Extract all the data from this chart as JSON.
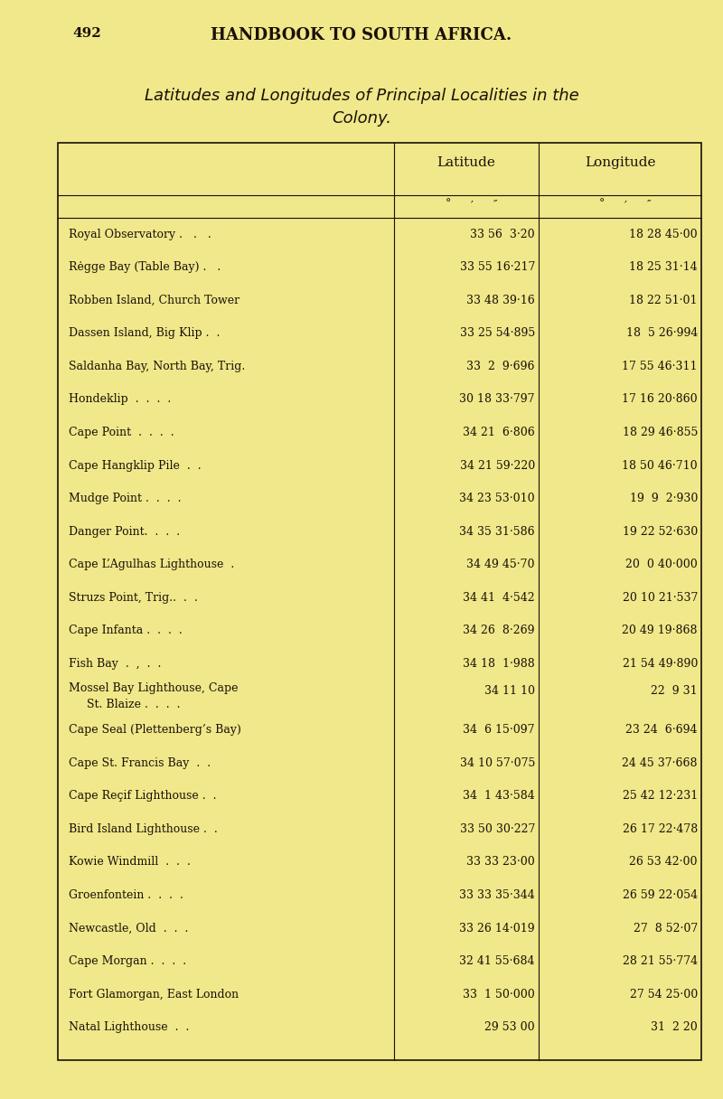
{
  "page_number": "492",
  "header": "HANDBOOK TO SOUTH AFRICA.",
  "title_line1": "Latitudes and Longitudes of Principal Localities in the",
  "title_line2": "Colony.",
  "col_header_name": "",
  "col_header_lat": "Latitude",
  "col_header_lon": "Longitude",
  "col_subheader": "°   ′   ″",
  "background_color": "#f0e88a",
  "table_bg": "#f5efb0",
  "text_color": "#1a1008",
  "rows": [
    [
      "Royal Observatory .   .   .",
      "33 56  3·20",
      "18 28 45·00"
    ],
    [
      "Rėgge Bay (Table Bay) .   .",
      "33 55 16·217",
      "18 25 31·14"
    ],
    [
      "Robben Island, Church Tower",
      "33 48 39·16",
      "18 22 51·01"
    ],
    [
      "Dassen Island, Big Klip .  .",
      "33 25 54·895",
      "18  5 26·994"
    ],
    [
      "Saldanha Bay, North Bay, Trig.",
      "33  2  9·696",
      "17 55 46·311"
    ],
    [
      "Hondeklip  .  .  .  .",
      "30 18 33·797",
      "17 16 20·860"
    ],
    [
      "Cape Point  .  .  .  .",
      "34 21  6·806",
      "18 29 46·855"
    ],
    [
      "Cape Hangklip Pile  .  .",
      "34 21 59·220",
      "18 50 46·710"
    ],
    [
      "Mudge Point .  .  .  .",
      "34 23 53·010",
      "19  9  2·930"
    ],
    [
      "Danger Point.  .  .  .",
      "34 35 31·586",
      "19 22 52·630"
    ],
    [
      "Cape L’Agulhas Lighthouse  .",
      "34 49 45·70",
      "20  0 40·000"
    ],
    [
      "Struzs Point, Trig..  .  .",
      "34 41  4·542",
      "20 10 21·537"
    ],
    [
      "Cape Infanta .  .  .  .",
      "34 26  8·269",
      "20 49 19·868"
    ],
    [
      "Fish Bay  .  ,  .  .",
      "34 18  1·988",
      "21 54 49·890"
    ],
    [
      "Mossel Bay Lighthouse, Cape\n  St. Blaize .  .  .  .",
      "34 11 10",
      "22  9 31"
    ],
    [
      "Cape Seal (Plettenberg’s Bay)",
      "34  6 15·097",
      "23 24  6·694"
    ],
    [
      "Cape St. Francis Bay  .  .",
      "34 10 57·075",
      "24 45 37·668"
    ],
    [
      "Cape Reçif Lighthouse .  .",
      "34  1 43·584",
      "25 42 12·231"
    ],
    [
      "Bird Island Lighthouse .  .",
      "33 50 30·227",
      "26 17 22·478"
    ],
    [
      "Kowie Windmill  .  .  .",
      "33 33 23·00",
      "26 53 42·00"
    ],
    [
      "Groenfontein .  .  .  .",
      "33 33 35·344",
      "26 59 22·054"
    ],
    [
      "Newcastle, Old  .  .  .",
      "33 26 14·019",
      "27  8 52·07"
    ],
    [
      "Cape Morgan .  .  .  .",
      "32 41 55·684",
      "28 21 55·774"
    ],
    [
      "Fort Glamorgan, East London",
      "33  1 50·000",
      "27 54 25·00"
    ],
    [
      "Natal Lighthouse  .  .",
      "29 53 00",
      "31  2 20"
    ]
  ]
}
